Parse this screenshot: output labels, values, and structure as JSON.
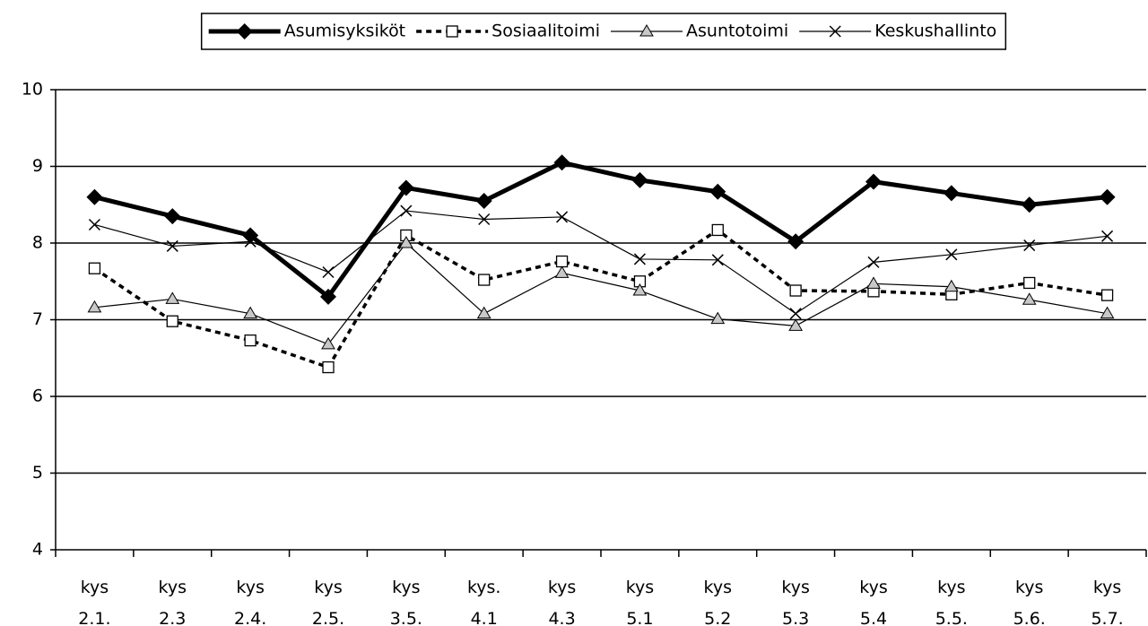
{
  "chart_data": {
    "type": "line",
    "categories": [
      "kys 2.1.",
      "kys 2.3",
      "kys 2.4.",
      "kys 2.5.",
      "kys 3.5.",
      "kys. 4.1",
      "kys 4.3",
      "kys 5.1",
      "kys 5.2",
      "kys 5.3",
      "kys 5.4",
      "kys 5.5.",
      "kys 5.6.",
      "kys 5.7."
    ],
    "series": [
      {
        "name": "Asumisyksiköt",
        "color": "#000000",
        "marker": "diamond",
        "dashed": false,
        "width": 5,
        "values": [
          8.6,
          8.35,
          8.1,
          7.3,
          8.72,
          8.55,
          9.05,
          8.82,
          8.67,
          8.02,
          8.8,
          8.65,
          8.5,
          8.6
        ]
      },
      {
        "name": "Sosiaalitoimi",
        "color": "#000000",
        "marker": "square",
        "dashed": true,
        "width": 3.5,
        "values": [
          7.67,
          6.98,
          6.73,
          6.38,
          8.1,
          7.52,
          7.76,
          7.5,
          8.17,
          7.38,
          7.37,
          7.33,
          7.48,
          7.32
        ]
      },
      {
        "name": "Asuntotoimi",
        "color": "#000000",
        "marker": "triangle",
        "dashed": false,
        "width": 1.2,
        "values": [
          7.16,
          7.27,
          7.08,
          6.68,
          8.0,
          7.08,
          7.61,
          7.38,
          7.01,
          6.92,
          7.47,
          7.43,
          7.26,
          7.08
        ]
      },
      {
        "name": "Keskushallinto",
        "color": "#000000",
        "marker": "cross",
        "dashed": false,
        "width": 1.2,
        "values": [
          8.24,
          7.96,
          8.02,
          7.62,
          8.42,
          8.31,
          8.34,
          7.79,
          7.78,
          7.08,
          7.75,
          7.85,
          7.97,
          8.09
        ]
      }
    ],
    "ylim": [
      4,
      10
    ],
    "yticks": [
      4,
      5,
      6,
      7,
      8,
      9,
      10
    ],
    "grid": true,
    "legend": "top"
  }
}
